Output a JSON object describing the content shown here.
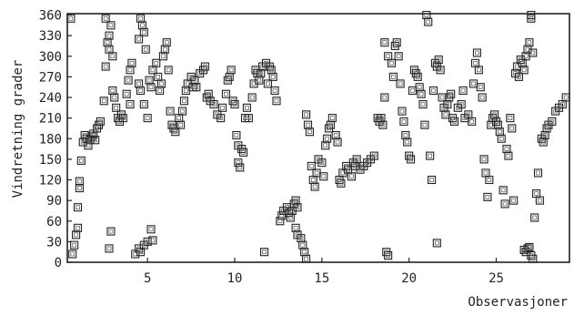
{
  "chart_data": {
    "type": "scatter",
    "title": "",
    "xlabel": "Observasjoner",
    "ylabel": "Vindretning grader",
    "xlim": [
      0.4,
      29.2
    ],
    "ylim": [
      0,
      362
    ],
    "x_ticks": [
      5,
      10,
      15,
      20,
      25
    ],
    "y_ticks": [
      0,
      30,
      60,
      90,
      120,
      150,
      180,
      210,
      240,
      270,
      300,
      330,
      360
    ],
    "grid": false,
    "legend": "none",
    "marker": "open-square",
    "points": [
      [
        0.6,
        355
      ],
      [
        0.7,
        12
      ],
      [
        0.8,
        25
      ],
      [
        0.9,
        40
      ],
      [
        1.0,
        50
      ],
      [
        1.0,
        80
      ],
      [
        1.1,
        108
      ],
      [
        1.1,
        118
      ],
      [
        1.2,
        148
      ],
      [
        1.3,
        175
      ],
      [
        1.4,
        185
      ],
      [
        1.5,
        180
      ],
      [
        1.6,
        170
      ],
      [
        1.7,
        178
      ],
      [
        1.8,
        183
      ],
      [
        1.9,
        187
      ],
      [
        2.0,
        178
      ],
      [
        2.1,
        195
      ],
      [
        2.2,
        200
      ],
      [
        2.3,
        205
      ],
      [
        2.5,
        235
      ],
      [
        2.6,
        285
      ],
      [
        2.6,
        355
      ],
      [
        2.7,
        320
      ],
      [
        2.8,
        330
      ],
      [
        2.8,
        310
      ],
      [
        2.9,
        345
      ],
      [
        3.0,
        300
      ],
      [
        3.0,
        250
      ],
      [
        3.1,
        240
      ],
      [
        3.2,
        225
      ],
      [
        3.3,
        210
      ],
      [
        3.4,
        205
      ],
      [
        3.5,
        215
      ],
      [
        3.6,
        210
      ],
      [
        3.8,
        245
      ],
      [
        3.9,
        265
      ],
      [
        4.0,
        280
      ],
      [
        4.1,
        290
      ],
      [
        4.0,
        230
      ],
      [
        2.9,
        45
      ],
      [
        2.8,
        20
      ],
      [
        4.3,
        12
      ],
      [
        4.5,
        20
      ],
      [
        4.6,
        15
      ],
      [
        4.8,
        25
      ],
      [
        5.0,
        30
      ],
      [
        5.2,
        48
      ],
      [
        5.3,
        32
      ],
      [
        4.5,
        325
      ],
      [
        4.6,
        355
      ],
      [
        4.7,
        345
      ],
      [
        4.8,
        335
      ],
      [
        4.9,
        310
      ],
      [
        4.5,
        260
      ],
      [
        4.6,
        250
      ],
      [
        4.8,
        230
      ],
      [
        5.0,
        210
      ],
      [
        5.1,
        265
      ],
      [
        5.2,
        255
      ],
      [
        5.3,
        280
      ],
      [
        5.5,
        290
      ],
      [
        5.6,
        270
      ],
      [
        5.7,
        250
      ],
      [
        5.8,
        260
      ],
      [
        5.9,
        300
      ],
      [
        6.0,
        310
      ],
      [
        6.1,
        320
      ],
      [
        6.2,
        280
      ],
      [
        6.3,
        220
      ],
      [
        6.4,
        200
      ],
      [
        6.5,
        195
      ],
      [
        6.6,
        190
      ],
      [
        6.8,
        210
      ],
      [
        6.9,
        200
      ],
      [
        7.0,
        220
      ],
      [
        7.1,
        235
      ],
      [
        7.2,
        250
      ],
      [
        7.3,
        260
      ],
      [
        7.5,
        270
      ],
      [
        7.6,
        255
      ],
      [
        7.7,
        265
      ],
      [
        7.8,
        255
      ],
      [
        8.0,
        275
      ],
      [
        8.2,
        280
      ],
      [
        8.3,
        285
      ],
      [
        8.4,
        240
      ],
      [
        8.5,
        245
      ],
      [
        8.6,
        235
      ],
      [
        8.8,
        230
      ],
      [
        9.0,
        215
      ],
      [
        9.2,
        210
      ],
      [
        9.3,
        225
      ],
      [
        9.5,
        245
      ],
      [
        9.6,
        265
      ],
      [
        9.7,
        270
      ],
      [
        9.8,
        280
      ],
      [
        9.9,
        235
      ],
      [
        10.0,
        230
      ],
      [
        10.1,
        185
      ],
      [
        10.2,
        170
      ],
      [
        10.2,
        145
      ],
      [
        10.3,
        138
      ],
      [
        10.4,
        165
      ],
      [
        10.5,
        160
      ],
      [
        10.6,
        210
      ],
      [
        10.7,
        225
      ],
      [
        10.8,
        210
      ],
      [
        11.0,
        240
      ],
      [
        11.1,
        260
      ],
      [
        11.2,
        280
      ],
      [
        11.3,
        275
      ],
      [
        11.4,
        265
      ],
      [
        11.5,
        275
      ],
      [
        11.6,
        285
      ],
      [
        11.8,
        290
      ],
      [
        11.9,
        260
      ],
      [
        12.0,
        285
      ],
      [
        12.1,
        280
      ],
      [
        12.2,
        270
      ],
      [
        12.3,
        250
      ],
      [
        12.4,
        235
      ],
      [
        11.7,
        15
      ],
      [
        12.6,
        60
      ],
      [
        12.7,
        68
      ],
      [
        12.8,
        75
      ],
      [
        13.0,
        80
      ],
      [
        13.1,
        72
      ],
      [
        13.2,
        65
      ],
      [
        13.3,
        75
      ],
      [
        13.4,
        85
      ],
      [
        13.5,
        90
      ],
      [
        13.5,
        50
      ],
      [
        13.6,
        40
      ],
      [
        13.8,
        35
      ],
      [
        13.9,
        25
      ],
      [
        14.0,
        15
      ],
      [
        14.1,
        5
      ],
      [
        13.6,
        80
      ],
      [
        14.1,
        215
      ],
      [
        14.2,
        200
      ],
      [
        14.3,
        190
      ],
      [
        14.4,
        140
      ],
      [
        14.5,
        120
      ],
      [
        14.6,
        110
      ],
      [
        14.7,
        130
      ],
      [
        14.8,
        150
      ],
      [
        15.0,
        145
      ],
      [
        15.1,
        125
      ],
      [
        15.2,
        170
      ],
      [
        15.3,
        180
      ],
      [
        15.4,
        195
      ],
      [
        15.5,
        200
      ],
      [
        15.6,
        210
      ],
      [
        15.8,
        185
      ],
      [
        15.9,
        175
      ],
      [
        16.0,
        120
      ],
      [
        16.1,
        115
      ],
      [
        16.2,
        130
      ],
      [
        16.4,
        140
      ],
      [
        16.5,
        135
      ],
      [
        16.7,
        125
      ],
      [
        16.8,
        145
      ],
      [
        16.9,
        140
      ],
      [
        17.0,
        150
      ],
      [
        17.2,
        135
      ],
      [
        17.4,
        140
      ],
      [
        17.6,
        145
      ],
      [
        17.8,
        150
      ],
      [
        18.0,
        155
      ],
      [
        18.2,
        210
      ],
      [
        18.3,
        205
      ],
      [
        18.4,
        210
      ],
      [
        18.5,
        200
      ],
      [
        18.6,
        240
      ],
      [
        18.7,
        15
      ],
      [
        18.8,
        10
      ],
      [
        18.6,
        320
      ],
      [
        18.8,
        300
      ],
      [
        19.0,
        290
      ],
      [
        19.1,
        270
      ],
      [
        19.2,
        315
      ],
      [
        19.3,
        320
      ],
      [
        19.4,
        300
      ],
      [
        19.5,
        260
      ],
      [
        19.6,
        220
      ],
      [
        19.7,
        205
      ],
      [
        19.8,
        185
      ],
      [
        19.9,
        175
      ],
      [
        20.0,
        155
      ],
      [
        20.1,
        150
      ],
      [
        20.2,
        250
      ],
      [
        20.3,
        280
      ],
      [
        20.4,
        275
      ],
      [
        20.5,
        270
      ],
      [
        20.6,
        255
      ],
      [
        20.7,
        245
      ],
      [
        20.8,
        230
      ],
      [
        20.9,
        200
      ],
      [
        21.0,
        360
      ],
      [
        21.1,
        350
      ],
      [
        21.2,
        155
      ],
      [
        21.3,
        120
      ],
      [
        21.4,
        250
      ],
      [
        21.5,
        290
      ],
      [
        21.6,
        285
      ],
      [
        21.7,
        295
      ],
      [
        21.8,
        280
      ],
      [
        21.9,
        240
      ],
      [
        22.0,
        225
      ],
      [
        22.1,
        215
      ],
      [
        22.2,
        230
      ],
      [
        22.3,
        240
      ],
      [
        22.4,
        245
      ],
      [
        22.5,
        210
      ],
      [
        22.6,
        205
      ],
      [
        22.8,
        225
      ],
      [
        23.0,
        230
      ],
      [
        23.1,
        250
      ],
      [
        21.6,
        28
      ],
      [
        23.2,
        210
      ],
      [
        23.4,
        215
      ],
      [
        23.6,
        205
      ],
      [
        23.7,
        260
      ],
      [
        23.8,
        290
      ],
      [
        23.9,
        305
      ],
      [
        24.0,
        280
      ],
      [
        24.1,
        255
      ],
      [
        24.2,
        240
      ],
      [
        24.3,
        150
      ],
      [
        24.4,
        130
      ],
      [
        24.5,
        95
      ],
      [
        24.6,
        120
      ],
      [
        24.7,
        200
      ],
      [
        24.8,
        210
      ],
      [
        24.9,
        215
      ],
      [
        25.0,
        205
      ],
      [
        25.1,
        200
      ],
      [
        25.2,
        190
      ],
      [
        25.3,
        180
      ],
      [
        25.4,
        105
      ],
      [
        25.5,
        85
      ],
      [
        25.6,
        165
      ],
      [
        25.7,
        155
      ],
      [
        25.8,
        210
      ],
      [
        25.9,
        195
      ],
      [
        26.0,
        90
      ],
      [
        26.1,
        275
      ],
      [
        26.2,
        285
      ],
      [
        26.3,
        270
      ],
      [
        26.4,
        295
      ],
      [
        26.5,
        290
      ],
      [
        26.6,
        280
      ],
      [
        26.7,
        300
      ],
      [
        26.8,
        310
      ],
      [
        26.9,
        320
      ],
      [
        27.0,
        355
      ],
      [
        27.0,
        360
      ],
      [
        27.1,
        305
      ],
      [
        26.6,
        18
      ],
      [
        26.7,
        15
      ],
      [
        26.8,
        20
      ],
      [
        26.9,
        22
      ],
      [
        27.0,
        10
      ],
      [
        27.1,
        5
      ],
      [
        27.2,
        65
      ],
      [
        27.3,
        100
      ],
      [
        27.4,
        130
      ],
      [
        27.5,
        90
      ],
      [
        27.6,
        180
      ],
      [
        27.7,
        175
      ],
      [
        27.8,
        185
      ],
      [
        27.9,
        195
      ],
      [
        28.0,
        200
      ],
      [
        28.2,
        205
      ],
      [
        28.4,
        220
      ],
      [
        28.6,
        225
      ],
      [
        28.8,
        230
      ],
      [
        29.0,
        240
      ]
    ]
  }
}
